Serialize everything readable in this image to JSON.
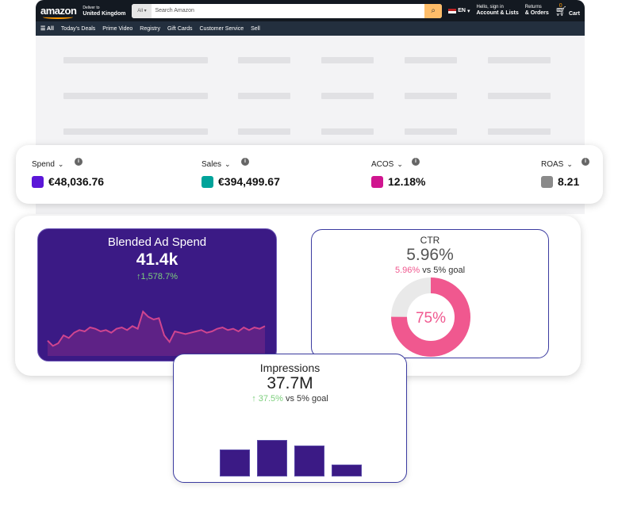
{
  "header": {
    "logo": "amazon",
    "deliver_to": "Deliver to",
    "location": "United Kingdom",
    "search_category": "All",
    "search_placeholder": "Search Amazon",
    "language": "EN",
    "hello": "Hello, sign in",
    "account": "Account & Lists",
    "returns": "Returns",
    "orders": "& Orders",
    "cart_count": "0",
    "cart": "Cart"
  },
  "nav": {
    "items": [
      "All",
      "Today's Deals",
      "Prime Video",
      "Registry",
      "Gift Cards",
      "Customer Service",
      "Sell"
    ]
  },
  "metrics": [
    {
      "label": "Spend",
      "value": "€48,036.76",
      "color": "#5b16d8"
    },
    {
      "label": "Sales",
      "value": "€394,499.67",
      "color": "#00a39a"
    },
    {
      "label": "ACOS",
      "value": "12.18%",
      "color": "#d0158f"
    },
    {
      "label": "ROAS",
      "value": "8.21",
      "color": "#8a8a8a"
    }
  ],
  "blended": {
    "title": "Blended Ad Spend",
    "value": "41.4k",
    "change": "↑1,578.7%"
  },
  "ctr": {
    "title": "CTR",
    "value": "5.96%",
    "pct": "5.96%",
    "vs": "vs 5% goal",
    "progress_label": "75%",
    "progress": 75
  },
  "impressions": {
    "title": "Impressions",
    "value": "37.7M",
    "change": "↑ 37.5%",
    "vs": "vs 5% goal"
  },
  "chart_data": [
    {
      "type": "line",
      "title": "Blended Ad Spend",
      "values": [
        8,
        4,
        6,
        12,
        10,
        14,
        16,
        15,
        18,
        17,
        15,
        16,
        14,
        17,
        18,
        16,
        19,
        17,
        30,
        26,
        24,
        25,
        12,
        7,
        15,
        14,
        13,
        14,
        15,
        16,
        14,
        15,
        17,
        18,
        16,
        17,
        15,
        18,
        16,
        18,
        17,
        19
      ]
    },
    {
      "type": "bar",
      "title": "Impressions",
      "values": [
        35,
        48,
        41,
        16
      ]
    }
  ]
}
